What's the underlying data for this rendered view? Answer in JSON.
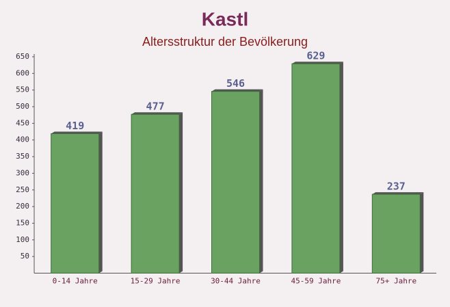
{
  "chart_data": {
    "type": "bar",
    "title": "Kastl",
    "subtitle": "Altersstruktur der Bevölkerung",
    "categories": [
      "0-14 Jahre",
      "15-29 Jahre",
      "30-44 Jahre",
      "45-59 Jahre",
      "75+ Jahre"
    ],
    "values": [
      419,
      477,
      546,
      629,
      237
    ],
    "color": "#6aa262",
    "ylim": [
      0,
      650
    ],
    "yticks": [
      50,
      100,
      150,
      200,
      250,
      300,
      350,
      400,
      450,
      500,
      550,
      600,
      650
    ],
    "grid": false
  }
}
